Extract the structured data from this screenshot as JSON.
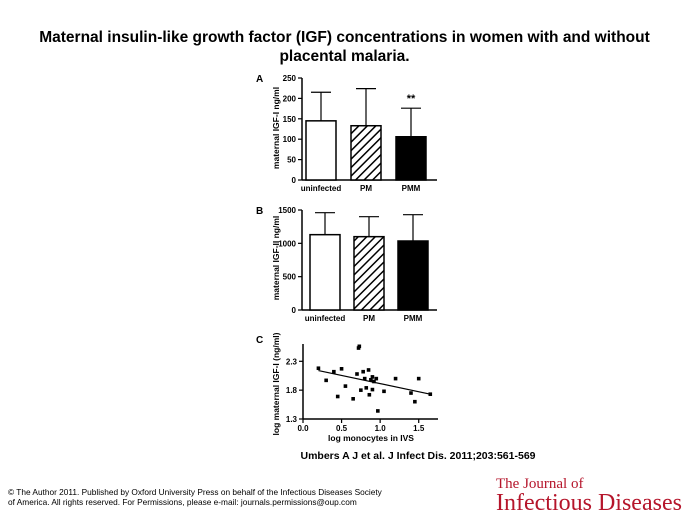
{
  "slide": {
    "title": "Maternal insulin-like growth factor (IGF) concentrations in women with and without placental malaria.",
    "citation": "Umbers A J et al. J Infect Dis. 2011;203:561-569",
    "copyright": "© The Author 2011. Published by Oxford University Press on behalf of the Infectious Diseases Society of America. All rights reserved. For Permissions, please e-mail: journals.permissions@oup.com",
    "journal_logo": {
      "line1": "The Journal of",
      "line2": "Infectious Diseases",
      "color": "#b5152b"
    }
  },
  "chart_data": [
    {
      "type": "bar",
      "panel": "A",
      "ylabel": "maternal IGF-I ng/ml",
      "ylim": [
        0,
        250
      ],
      "yticks": [
        0,
        50,
        100,
        150,
        200,
        250
      ],
      "categories": [
        "uninfected",
        "PM",
        "PMM"
      ],
      "values": [
        145,
        133,
        106
      ],
      "error_upper": [
        215,
        224,
        176
      ],
      "fills": [
        "white",
        "hatched",
        "black"
      ],
      "annotations": [
        {
          "category": "PMM",
          "text": "**"
        }
      ]
    },
    {
      "type": "bar",
      "panel": "B",
      "ylabel": "maternal IGF-II ng/ml",
      "ylim": [
        0,
        1500
      ],
      "yticks": [
        0,
        500,
        1000,
        1500
      ],
      "categories": [
        "uninfected",
        "PM",
        "PMM"
      ],
      "values": [
        1130,
        1100,
        1035
      ],
      "error_upper": [
        1460,
        1400,
        1430
      ],
      "fills": [
        "white",
        "hatched",
        "black"
      ]
    },
    {
      "type": "scatter",
      "panel": "C",
      "xlabel": "log monocytes in IVS",
      "ylabel": "log maternal IGF-I (ng/ml)",
      "xlim": [
        0,
        1.75
      ],
      "ylim": [
        1.3,
        2.6
      ],
      "xticks": [
        "0.0",
        "0.5",
        "1.0",
        "1.5"
      ],
      "yticks": [
        "1.3",
        "1.8",
        "2.3"
      ],
      "points": [
        [
          0.2,
          2.18
        ],
        [
          0.3,
          1.97
        ],
        [
          0.4,
          2.12
        ],
        [
          0.45,
          1.69
        ],
        [
          0.5,
          2.17
        ],
        [
          0.55,
          1.87
        ],
        [
          0.65,
          1.65
        ],
        [
          0.7,
          2.08
        ],
        [
          0.72,
          2.53
        ],
        [
          0.73,
          2.56
        ],
        [
          0.75,
          1.8
        ],
        [
          0.78,
          2.12
        ],
        [
          0.8,
          2.0
        ],
        [
          0.82,
          1.84
        ],
        [
          0.85,
          2.15
        ],
        [
          0.86,
          1.72
        ],
        [
          0.88,
          1.98
        ],
        [
          0.9,
          1.81
        ],
        [
          0.9,
          2.03
        ],
        [
          0.92,
          1.95
        ],
        [
          0.95,
          2.0
        ],
        [
          0.97,
          1.44
        ],
        [
          1.05,
          1.78
        ],
        [
          1.2,
          2.0
        ],
        [
          1.4,
          1.75
        ],
        [
          1.45,
          1.6
        ],
        [
          1.5,
          2.0
        ],
        [
          1.65,
          1.73
        ]
      ],
      "regression_line": {
        "x": [
          0.2,
          1.65
        ],
        "y": [
          2.14,
          1.73
        ]
      }
    }
  ]
}
